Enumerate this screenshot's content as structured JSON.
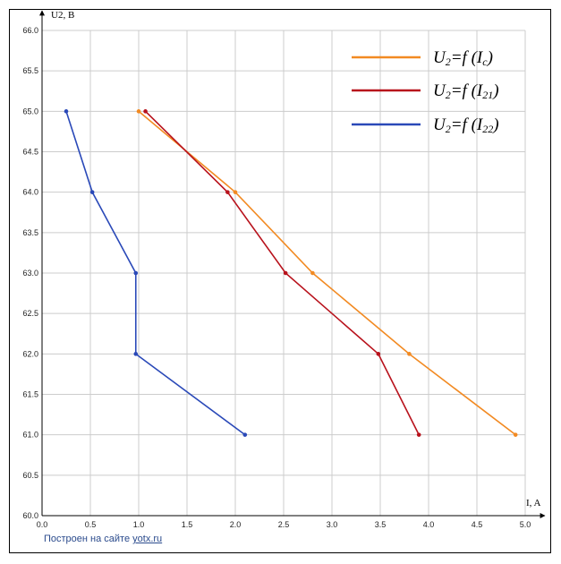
{
  "chart_data": {
    "type": "line",
    "xlabel": "I, A",
    "ylabel": "U2, B",
    "xlim": [
      0.0,
      5.0
    ],
    "ylim": [
      60.0,
      66.0
    ],
    "xticks": [
      "0.0",
      "0.5",
      "1.0",
      "1.5",
      "2.0",
      "2.5",
      "3.0",
      "3.5",
      "4.0",
      "4.5",
      "5.0"
    ],
    "yticks": [
      "60.0",
      "60.5",
      "61.0",
      "61.5",
      "62.0",
      "62.5",
      "63.0",
      "63.5",
      "64.0",
      "64.5",
      "65.0",
      "65.5",
      "66.0"
    ],
    "grid": true,
    "legend_position": "top-right",
    "series": [
      {
        "name": "U2=f(Ic)",
        "legend_main": "U",
        "legend_sub": "2",
        "legend_func": "=f (",
        "legend_arg": "I",
        "legend_argsub": "c",
        "legend_close": ")",
        "color": "#f28a22",
        "x": [
          1.0,
          2.0,
          2.8,
          3.8,
          4.9
        ],
        "y": [
          65.0,
          64.0,
          63.0,
          62.0,
          61.0
        ]
      },
      {
        "name": "U2=f(I21)",
        "legend_main": "U",
        "legend_sub": "2",
        "legend_func": "=f (",
        "legend_arg": "I",
        "legend_argsub": "21",
        "legend_close": ")",
        "color": "#b8121c",
        "x": [
          1.07,
          1.92,
          2.52,
          3.48,
          3.9
        ],
        "y": [
          65.0,
          64.0,
          63.0,
          62.0,
          61.0
        ]
      },
      {
        "name": "U2=f(I22)",
        "legend_main": "U",
        "legend_sub": "2",
        "legend_func": "=f (",
        "legend_arg": "I",
        "legend_argsub": "22",
        "legend_close": ")",
        "color": "#2a49b8",
        "x": [
          0.25,
          0.52,
          0.97,
          0.97,
          2.1
        ],
        "y": [
          65.0,
          64.0,
          63.0,
          62.0,
          61.0
        ]
      }
    ]
  },
  "credit": {
    "prefix": "Построен на сайте ",
    "link": "yotx.ru"
  }
}
